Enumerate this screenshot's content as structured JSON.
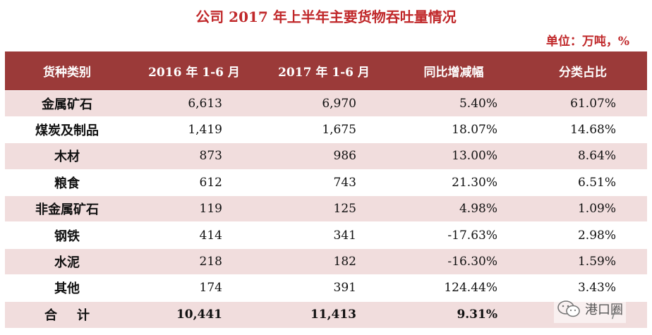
{
  "title": "公司 2017 年上半年主要货物吞吐量情况",
  "unit": "单位：万吨，%",
  "table": {
    "headers": [
      "货种类别",
      "2016 年 1-6 月",
      "2017 年 1-6 月",
      "同比增减幅",
      "分类占比"
    ],
    "rows": [
      {
        "category": "金属矿石",
        "h1_2016": "6,613",
        "h1_2017": "6,970",
        "yoy": "5.40%",
        "share": "61.07%"
      },
      {
        "category": "煤炭及制品",
        "h1_2016": "1,419",
        "h1_2017": "1,675",
        "yoy": "18.07%",
        "share": "14.68%"
      },
      {
        "category": "木材",
        "h1_2016": "873",
        "h1_2017": "986",
        "yoy": "13.00%",
        "share": "8.64%"
      },
      {
        "category": "粮食",
        "h1_2016": "612",
        "h1_2017": "743",
        "yoy": "21.30%",
        "share": "6.51%"
      },
      {
        "category": "非金属矿石",
        "h1_2016": "119",
        "h1_2017": "125",
        "yoy": "4.98%",
        "share": "1.09%"
      },
      {
        "category": "钢铁",
        "h1_2016": "414",
        "h1_2017": "341",
        "yoy": "-17.63%",
        "share": "2.98%"
      },
      {
        "category": "水泥",
        "h1_2016": "218",
        "h1_2017": "182",
        "yoy": "-16.30%",
        "share": "1.59%"
      },
      {
        "category": "其他",
        "h1_2016": "174",
        "h1_2017": "391",
        "yoy": "124.44%",
        "share": "3.43%"
      }
    ],
    "total": {
      "category": "合计",
      "h1_2016": "10,441",
      "h1_2017": "11,413",
      "yoy": "9.31%",
      "share": "/"
    }
  },
  "watermark": {
    "icon": "wechat-icon",
    "text": "港口圈"
  },
  "colors": {
    "title": "#c0282a",
    "header_bg": "#9b3a39",
    "stripe": "#f1dddd"
  }
}
